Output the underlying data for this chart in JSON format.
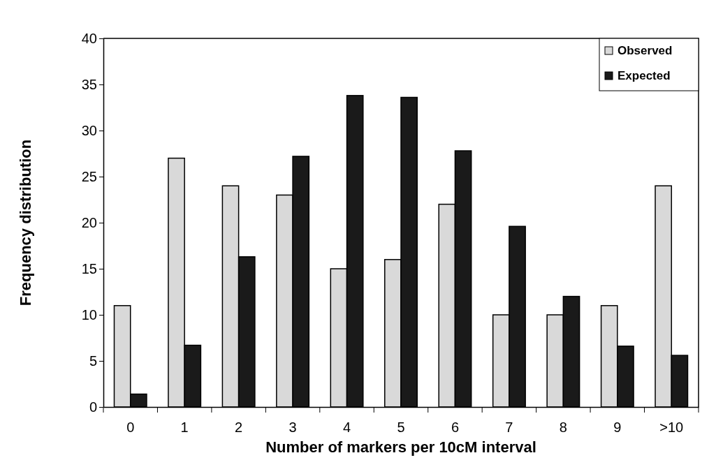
{
  "chart_data": {
    "type": "bar",
    "xlabel": "Number of markers per 10cM interval",
    "ylabel": "Frequency distribution",
    "categories": [
      "0",
      "1",
      "2",
      "3",
      "4",
      "5",
      "6",
      "7",
      "8",
      "9",
      ">10"
    ],
    "series": [
      {
        "name": "Observed",
        "color": "#d9d9d9",
        "values": [
          11,
          27,
          24,
          23,
          15,
          16,
          22,
          10,
          10,
          11,
          24
        ]
      },
      {
        "name": "Expected",
        "color": "#1a1a1a",
        "values": [
          1.4,
          6.7,
          16.3,
          27.2,
          33.8,
          33.6,
          27.8,
          19.6,
          12.0,
          6.6,
          5.6
        ]
      }
    ],
    "ylim": [
      0,
      40
    ],
    "yticks": [
      0,
      5,
      10,
      15,
      20,
      25,
      30,
      35,
      40
    ],
    "grid": false,
    "legend": "top right"
  }
}
